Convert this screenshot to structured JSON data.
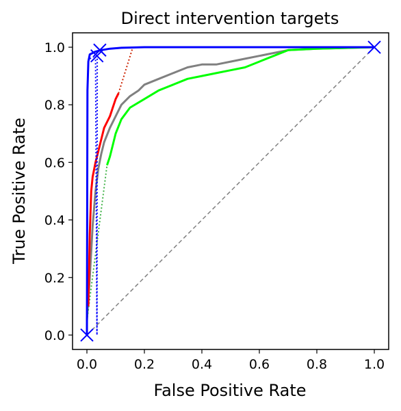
{
  "chart_data": {
    "type": "line",
    "title": "Direct intervention targets",
    "xlabel": "False Positive Rate",
    "ylabel": "True Positive Rate",
    "xlim": [
      -0.05,
      1.05
    ],
    "ylim": [
      -0.05,
      1.05
    ],
    "xticks": [
      "0.0",
      "0.2",
      "0.4",
      "0.6",
      "0.8",
      "1.0"
    ],
    "yticks": [
      "0.0",
      "0.2",
      "0.4",
      "0.6",
      "0.8",
      "1.0"
    ],
    "grid": false,
    "legend": "none",
    "series": [
      {
        "color": "#808080",
        "style": "dashed",
        "points": [
          [
            0,
            0
          ],
          [
            1,
            1
          ]
        ]
      },
      {
        "color": "#808080",
        "style": "solid",
        "points": [
          [
            0,
            0.05
          ],
          [
            0.01,
            0.2
          ],
          [
            0.02,
            0.38
          ],
          [
            0.03,
            0.5
          ],
          [
            0.04,
            0.58
          ],
          [
            0.05,
            0.63
          ],
          [
            0.06,
            0.67
          ],
          [
            0.08,
            0.72
          ],
          [
            0.1,
            0.76
          ],
          [
            0.12,
            0.8
          ],
          [
            0.15,
            0.83
          ],
          [
            0.18,
            0.85
          ],
          [
            0.2,
            0.87
          ],
          [
            0.25,
            0.89
          ],
          [
            0.3,
            0.91
          ],
          [
            0.35,
            0.93
          ],
          [
            0.4,
            0.94
          ],
          [
            0.45,
            0.94
          ],
          [
            0.5,
            0.95
          ],
          [
            0.55,
            0.96
          ],
          [
            0.6,
            0.97
          ],
          [
            0.65,
            0.98
          ],
          [
            0.7,
            0.99
          ],
          [
            0.8,
            0.995
          ],
          [
            1.0,
            1.0
          ]
        ]
      },
      {
        "color": "#00ff00",
        "style": "solid",
        "points": [
          [
            0.07,
            0.59
          ],
          [
            0.08,
            0.62
          ],
          [
            0.09,
            0.66
          ],
          [
            0.1,
            0.7
          ],
          [
            0.12,
            0.75
          ],
          [
            0.15,
            0.79
          ],
          [
            0.2,
            0.82
          ],
          [
            0.25,
            0.85
          ],
          [
            0.3,
            0.87
          ],
          [
            0.35,
            0.89
          ],
          [
            0.4,
            0.9
          ],
          [
            0.45,
            0.91
          ],
          [
            0.5,
            0.92
          ],
          [
            0.55,
            0.93
          ],
          [
            0.6,
            0.95
          ],
          [
            0.65,
            0.97
          ],
          [
            0.7,
            0.99
          ],
          [
            0.8,
            0.995
          ],
          [
            1.0,
            1.0
          ]
        ]
      },
      {
        "color": "#3cb043",
        "style": "dotted",
        "points": [
          [
            0,
            0.05
          ],
          [
            0.07,
            0.59
          ]
        ]
      },
      {
        "color": "#ff0000",
        "style": "solid",
        "points": [
          [
            0.005,
            0.1
          ],
          [
            0.01,
            0.35
          ],
          [
            0.015,
            0.5
          ],
          [
            0.02,
            0.55
          ],
          [
            0.03,
            0.6
          ],
          [
            0.04,
            0.64
          ],
          [
            0.05,
            0.68
          ],
          [
            0.06,
            0.72
          ],
          [
            0.07,
            0.74
          ],
          [
            0.08,
            0.76
          ],
          [
            0.09,
            0.79
          ],
          [
            0.1,
            0.82
          ],
          [
            0.11,
            0.84
          ]
        ]
      },
      {
        "color": "#cc2200",
        "style": "dotted",
        "points": [
          [
            0.11,
            0.84
          ],
          [
            0.16,
            1.0
          ],
          [
            1.0,
            1.0
          ]
        ]
      },
      {
        "color": "#0000ff",
        "style": "dotted",
        "points": [
          [
            0.01,
            0.96
          ],
          [
            0.03,
            0.97
          ],
          [
            0.035,
            0.0
          ],
          [
            0.036,
            0.97
          ]
        ]
      },
      {
        "color": "#0000ff",
        "style": "solid",
        "points": [
          [
            0,
            0
          ],
          [
            0.002,
            0.85
          ],
          [
            0.005,
            0.95
          ],
          [
            0.01,
            0.975
          ],
          [
            0.02,
            0.98
          ],
          [
            0.03,
            0.985
          ],
          [
            0.05,
            0.99
          ],
          [
            0.08,
            0.995
          ],
          [
            0.12,
            0.998
          ],
          [
            0.2,
            1.0
          ],
          [
            0.5,
            1.0
          ],
          [
            1.0,
            1.0
          ]
        ]
      }
    ],
    "markers": [
      {
        "color": "#0000ff",
        "symbol": "x",
        "points": [
          [
            0,
            0
          ],
          [
            0.035,
            0.97
          ],
          [
            0.045,
            0.99
          ],
          [
            1.0,
            1.0
          ]
        ]
      }
    ]
  }
}
